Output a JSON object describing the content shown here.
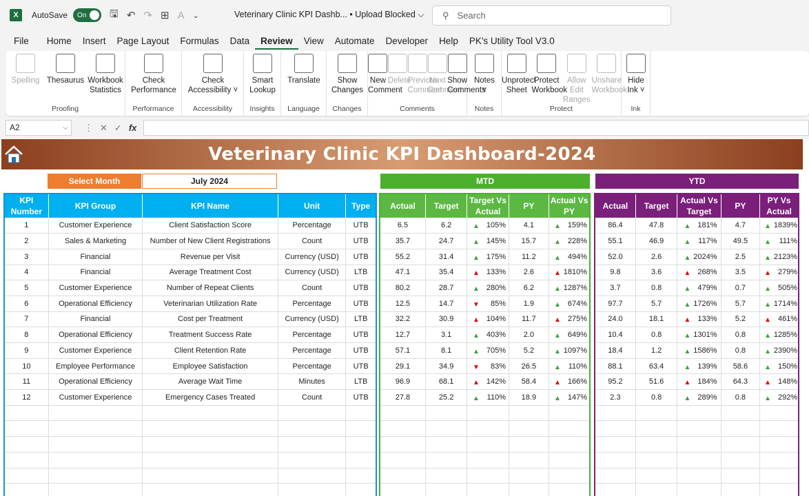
{
  "titlebar": {
    "autosave_label": "AutoSave",
    "autosave_state": "On",
    "doc_title": "Veterinary Clinic KPI Dashb...  •  Upload Blocked",
    "search_placeholder": "Search"
  },
  "menu": [
    "File",
    "Home",
    "Insert",
    "Page Layout",
    "Formulas",
    "Data",
    "Review",
    "View",
    "Automate",
    "Developer",
    "Help",
    "PK's Utility Tool V3.0"
  ],
  "active_menu": "Review",
  "ribbon": {
    "groups": [
      {
        "label": "Proofing",
        "buttons": [
          {
            "l1": "Spelling",
            "l2": "",
            "disabled": true
          },
          {
            "l1": "Thesaurus",
            "l2": "",
            "disabled": false
          },
          {
            "l1": "Workbook",
            "l2": "Statistics",
            "disabled": false
          }
        ]
      },
      {
        "label": "Performance",
        "buttons": [
          {
            "l1": "Check",
            "l2": "Performance",
            "disabled": false
          }
        ]
      },
      {
        "label": "Accessibility",
        "buttons": [
          {
            "l1": "Check",
            "l2": "Accessibility ˅",
            "disabled": false
          }
        ]
      },
      {
        "label": "Insights",
        "buttons": [
          {
            "l1": "Smart",
            "l2": "Lookup",
            "disabled": false
          }
        ]
      },
      {
        "label": "Language",
        "buttons": [
          {
            "l1": "Translate",
            "l2": "",
            "disabled": false
          }
        ]
      },
      {
        "label": "Changes",
        "buttons": [
          {
            "l1": "Show",
            "l2": "Changes",
            "disabled": false
          }
        ]
      },
      {
        "label": "Comments",
        "buttons": [
          {
            "l1": "New",
            "l2": "Comment",
            "disabled": false
          },
          {
            "l1": "Delete",
            "l2": "",
            "disabled": true
          },
          {
            "l1": "Previous",
            "l2": "Comment",
            "disabled": true
          },
          {
            "l1": "Next",
            "l2": "Comment",
            "disabled": true
          },
          {
            "l1": "Show",
            "l2": "Comments",
            "disabled": false
          }
        ]
      },
      {
        "label": "Notes",
        "buttons": [
          {
            "l1": "Notes",
            "l2": "˅",
            "disabled": false
          }
        ]
      },
      {
        "label": "Protect",
        "buttons": [
          {
            "l1": "Unprotect",
            "l2": "Sheet",
            "disabled": false
          },
          {
            "l1": "Protect",
            "l2": "Workbook",
            "disabled": false
          },
          {
            "l1": "Allow Edit",
            "l2": "Ranges",
            "disabled": true
          },
          {
            "l1": "Unshare",
            "l2": "Workbook",
            "disabled": true
          }
        ]
      },
      {
        "label": "Ink",
        "buttons": [
          {
            "l1": "Hide",
            "l2": "Ink ˅",
            "disabled": false
          }
        ]
      }
    ]
  },
  "formula_bar": {
    "cell_ref": "A2",
    "fx": "fx",
    "value": ""
  },
  "dashboard": {
    "title": "Veterinary Clinic KPI Dashboard-2024",
    "select_month_label": "Select Month",
    "month_value": "July 2024",
    "mtd_label": "MTD",
    "ytd_label": "YTD",
    "left_headers": [
      "KPI Number",
      "KPI Group",
      "KPI Name",
      "Unit",
      "Type"
    ],
    "mtd_headers": [
      "Actual",
      "Target",
      "Target Vs Actual",
      "PY",
      "Actual Vs PY"
    ],
    "ytd_headers": [
      "Actual",
      "Target",
      "Actual Vs Target",
      "PY",
      "PY Vs Actual"
    ],
    "rows": [
      {
        "num": "1",
        "group": "Customer Experience",
        "name": "Client Satisfaction Score",
        "unit": "Percentage",
        "type": "UTB",
        "mtd": [
          "6.5",
          "6.2",
          "105%",
          "4.1",
          "159%"
        ],
        "mtd_dirs": [
          "up",
          "up"
        ],
        "ytd": [
          "86.4",
          "47.8",
          "181%",
          "4.7",
          "1839%"
        ],
        "ytd_dirs": [
          "up",
          "up"
        ]
      },
      {
        "num": "2",
        "group": "Sales & Marketing",
        "name": "Number of New Client Registrations",
        "unit": "Count",
        "type": "UTB",
        "mtd": [
          "35.7",
          "24.7",
          "145%",
          "15.7",
          "228%"
        ],
        "mtd_dirs": [
          "up",
          "up"
        ],
        "ytd": [
          "55.1",
          "46.9",
          "117%",
          "49.5",
          "111%"
        ],
        "ytd_dirs": [
          "up",
          "up"
        ]
      },
      {
        "num": "3",
        "group": "Financial",
        "name": "Revenue per Visit",
        "unit": "Currency (USD)",
        "type": "UTB",
        "mtd": [
          "55.2",
          "31.4",
          "175%",
          "11.2",
          "494%"
        ],
        "mtd_dirs": [
          "up",
          "up"
        ],
        "ytd": [
          "52.0",
          "2.6",
          "2024%",
          "2.5",
          "2123%"
        ],
        "ytd_dirs": [
          "up",
          "up"
        ]
      },
      {
        "num": "4",
        "group": "Financial",
        "name": "Average Treatment Cost",
        "unit": "Currency (USD)",
        "type": "LTB",
        "mtd": [
          "47.1",
          "35.4",
          "133%",
          "2.6",
          "1810%"
        ],
        "mtd_dirs": [
          "redup",
          "redup"
        ],
        "ytd": [
          "9.8",
          "3.6",
          "268%",
          "3.5",
          "279%"
        ],
        "ytd_dirs": [
          "redup",
          "redup"
        ]
      },
      {
        "num": "5",
        "group": "Customer Experience",
        "name": "Number of Repeat Clients",
        "unit": "Count",
        "type": "UTB",
        "mtd": [
          "80.2",
          "28.7",
          "280%",
          "6.2",
          "1287%"
        ],
        "mtd_dirs": [
          "up",
          "up"
        ],
        "ytd": [
          "3.7",
          "0.8",
          "479%",
          "0.7",
          "505%"
        ],
        "ytd_dirs": [
          "up",
          "up"
        ]
      },
      {
        "num": "6",
        "group": "Operational Efficiency",
        "name": "Veterinarian Utilization Rate",
        "unit": "Percentage",
        "type": "UTB",
        "mtd": [
          "12.5",
          "14.7",
          "85%",
          "1.9",
          "674%"
        ],
        "mtd_dirs": [
          "down",
          "up"
        ],
        "ytd": [
          "97.7",
          "5.7",
          "1726%",
          "5.7",
          "1714%"
        ],
        "ytd_dirs": [
          "up",
          "up"
        ]
      },
      {
        "num": "7",
        "group": "Financial",
        "name": "Cost per Treatment",
        "unit": "Currency (USD)",
        "type": "LTB",
        "mtd": [
          "32.2",
          "30.9",
          "104%",
          "11.7",
          "275%"
        ],
        "mtd_dirs": [
          "redup",
          "redup"
        ],
        "ytd": [
          "24.0",
          "18.1",
          "133%",
          "5.2",
          "461%"
        ],
        "ytd_dirs": [
          "redup",
          "redup"
        ]
      },
      {
        "num": "8",
        "group": "Operational Efficiency",
        "name": "Treatment Success Rate",
        "unit": "Percentage",
        "type": "UTB",
        "mtd": [
          "12.7",
          "3.1",
          "403%",
          "2.0",
          "649%"
        ],
        "mtd_dirs": [
          "up",
          "up"
        ],
        "ytd": [
          "10.4",
          "0.8",
          "1301%",
          "0.8",
          "1285%"
        ],
        "ytd_dirs": [
          "up",
          "up"
        ]
      },
      {
        "num": "9",
        "group": "Customer Experience",
        "name": "Client Retention Rate",
        "unit": "Percentage",
        "type": "UTB",
        "mtd": [
          "57.1",
          "8.1",
          "705%",
          "5.2",
          "1097%"
        ],
        "mtd_dirs": [
          "up",
          "up"
        ],
        "ytd": [
          "18.4",
          "1.2",
          "1586%",
          "0.8",
          "2390%"
        ],
        "ytd_dirs": [
          "up",
          "up"
        ]
      },
      {
        "num": "10",
        "group": "Employee Performance",
        "name": "Employee Satisfaction",
        "unit": "Percentage",
        "type": "UTB",
        "mtd": [
          "29.1",
          "34.9",
          "83%",
          "26.5",
          "110%"
        ],
        "mtd_dirs": [
          "down",
          "up"
        ],
        "ytd": [
          "88.1",
          "63.4",
          "139%",
          "58.6",
          "150%"
        ],
        "ytd_dirs": [
          "up",
          "up"
        ]
      },
      {
        "num": "11",
        "group": "Operational Efficiency",
        "name": "Average Wait Time",
        "unit": "Minutes",
        "type": "LTB",
        "mtd": [
          "96.9",
          "68.1",
          "142%",
          "58.4",
          "166%"
        ],
        "mtd_dirs": [
          "redup",
          "redup"
        ],
        "ytd": [
          "95.2",
          "51.6",
          "184%",
          "64.3",
          "148%"
        ],
        "ytd_dirs": [
          "redup",
          "redup"
        ]
      },
      {
        "num": "12",
        "group": "Customer Experience",
        "name": "Emergency Cases Treated",
        "unit": "Count",
        "type": "UTB",
        "mtd": [
          "27.8",
          "25.2",
          "110%",
          "18.9",
          "147%"
        ],
        "mtd_dirs": [
          "up",
          "up"
        ],
        "ytd": [
          "2.3",
          "0.8",
          "289%",
          "0.8",
          "292%"
        ],
        "ytd_dirs": [
          "up",
          "up"
        ]
      }
    ],
    "empty_rows": 6
  },
  "colors": {
    "orange": "#ed7d31",
    "mtd_green": "#4caf2f",
    "ytd_purple": "#7a1f7a",
    "kpi_blue": "#00b0f0"
  }
}
